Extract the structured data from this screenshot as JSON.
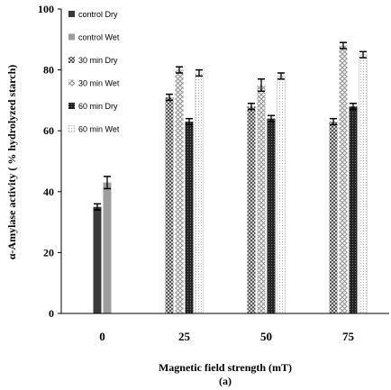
{
  "chart_data": {
    "type": "bar",
    "categories": [
      "0",
      "25",
      "50",
      "75"
    ],
    "xlabel": "Magnetic field strength (mT)",
    "caption": "(a)",
    "ylabel": "α-Amylase activity ( % hydrolyzed starch)",
    "ylim": [
      0,
      100
    ],
    "yticks": [
      0,
      20,
      40,
      60,
      80,
      100
    ],
    "grid": false,
    "legend_position": "top-left",
    "series": [
      {
        "name": "control Dry",
        "values": [
          35,
          null,
          null,
          null
        ],
        "errors": [
          1,
          null,
          null,
          null
        ],
        "color": "#3a3a3a",
        "pattern": "solid"
      },
      {
        "name": "control Wet",
        "values": [
          43,
          null,
          null,
          null
        ],
        "errors": [
          2,
          null,
          null,
          null
        ],
        "color": "#9e9e9e",
        "pattern": "solid"
      },
      {
        "name": "30 min Dry",
        "values": [
          null,
          71,
          68,
          63
        ],
        "errors": [
          null,
          1,
          1,
          1
        ],
        "color": "#7a7a7a",
        "pattern": "checker"
      },
      {
        "name": "30 min Wet",
        "values": [
          null,
          80,
          75,
          88
        ],
        "errors": [
          null,
          1,
          2,
          1
        ],
        "color": "#bdbdbd",
        "pattern": "zigzag"
      },
      {
        "name": "60 min Dry",
        "values": [
          null,
          63,
          64,
          68
        ],
        "errors": [
          null,
          1,
          1,
          1
        ],
        "color": "#333333",
        "pattern": "dots-dark"
      },
      {
        "name": "60 min Wet",
        "values": [
          null,
          79,
          78,
          85
        ],
        "errors": [
          null,
          1,
          1,
          1
        ],
        "color": "#e6e6e6",
        "pattern": "dots-light"
      }
    ]
  }
}
